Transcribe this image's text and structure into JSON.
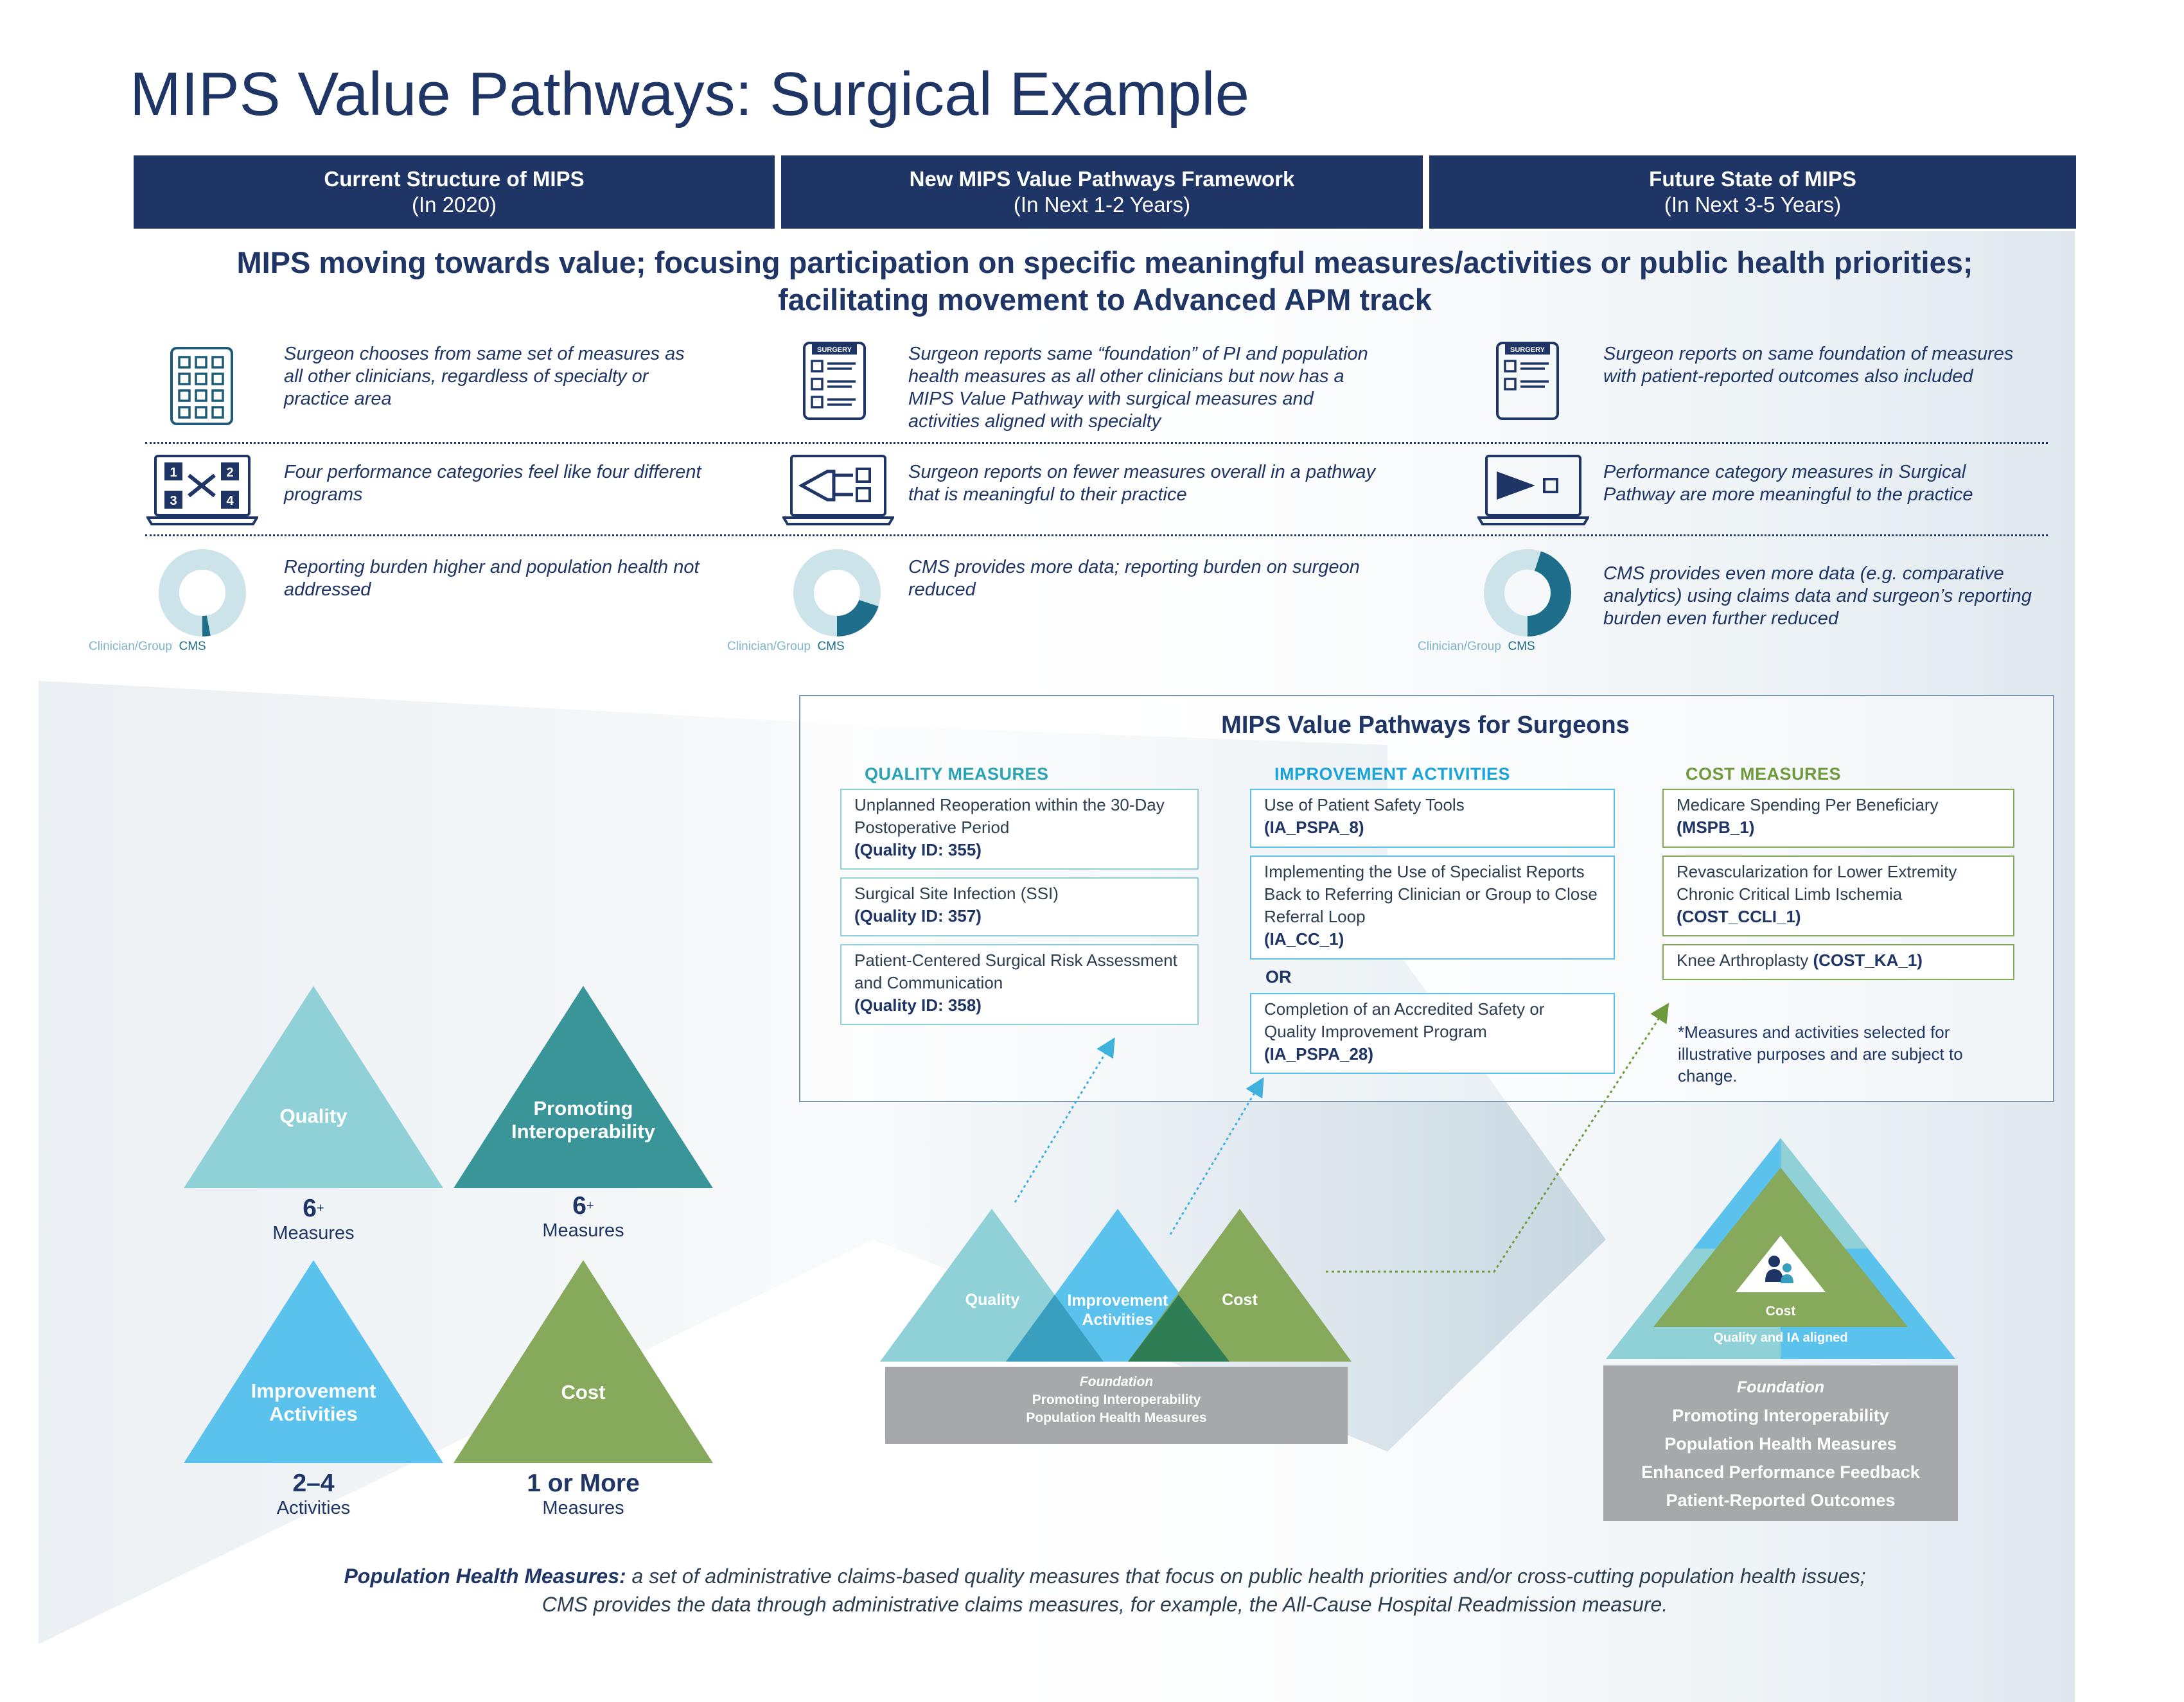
{
  "title": "MIPS Value Pathways: Surgical Example",
  "columns": [
    {
      "heading": "Current Structure of MIPS",
      "sub": "(In 2020)"
    },
    {
      "heading": "New MIPS Value Pathways Framework",
      "sub": "(In Next 1-2 Years)"
    },
    {
      "heading": "Future State of MIPS",
      "sub": "(In Next 3-5 Years)"
    }
  ],
  "subtitle": {
    "line1": "MIPS moving towards value; focusing participation on specific meaningful measures/activities or public health priorities;",
    "line2": "facilitating movement to Advanced APM track"
  },
  "rows": {
    "row1": [
      "Surgeon chooses from same set of measures as all other clinicians, regardless of specialty or practice area",
      "Surgeon reports same “foundation” of PI and population health measures as all other clinicians but now has a MIPS Value Pathway with surgical measures and activities aligned with specialty",
      "Surgeon reports on same foundation of measures with patient-reported outcomes also included"
    ],
    "row2": [
      "Four performance categories feel like four different programs",
      "Surgeon reports on fewer measures overall in a pathway that is meaningful to their practice",
      "Performance category measures in Surgical Pathway are more meaningful to the practice"
    ],
    "row3": [
      "Reporting burden higher and population health not addressed",
      "CMS provides more data; reporting burden on surgeon reduced",
      "CMS provides even more data (e.g. comparative analytics) using claims data and surgeon’s reporting burden even further reduced"
    ]
  },
  "donuts": {
    "label_left": "Clinician/Group",
    "label_right": "CMS",
    "cms_share": [
      0.03,
      0.2,
      0.45
    ]
  },
  "icons": {
    "surgery_tag": "SURGERY",
    "quad_numbers": [
      "1",
      "2",
      "3",
      "4"
    ]
  },
  "panel": {
    "title": "MIPS Value Pathways for Surgeons",
    "quality": {
      "heading": "QUALITY MEASURES",
      "items": [
        {
          "text": "Unplanned Reoperation within the 30-Day Postoperative Period",
          "id": "(Quality ID: 355)"
        },
        {
          "text": "Surgical Site Infection (SSI)",
          "id": "(Quality ID: 357)"
        },
        {
          "text": "Patient-Centered Surgical Risk Assessment and Communication",
          "id": "(Quality ID: 358)"
        }
      ]
    },
    "improvement": {
      "heading": "IMPROVEMENT ACTIVITIES",
      "items": [
        {
          "text": "Use of Patient Safety Tools",
          "id": "(IA_PSPA_8)"
        },
        {
          "text": "Implementing the Use of Specialist Reports Back to Referring Clinician or Group to Close Referral Loop",
          "id": "(IA_CC_1)"
        },
        {
          "text": "Completion of an Accredited Safety or Quality Improvement Program",
          "id": "(IA_PSPA_28)"
        }
      ],
      "or_label": "OR"
    },
    "cost": {
      "heading": "COST MEASURES",
      "items": [
        {
          "text": "Medicare Spending Per Beneficiary",
          "id": "(MSPB_1)"
        },
        {
          "text": "Revascularization for Lower Extremity Chronic Critical Limb Ischemia",
          "id": "(COST_CCLI_1)"
        },
        {
          "text": "Knee Arthroplasty",
          "id": "(COST_KA_1)"
        }
      ]
    },
    "note": "*Measures and activities selected for illustrative purposes and are subject to change."
  },
  "left_triangles": {
    "quality": {
      "label": "Quality",
      "count": "6",
      "sup": "+",
      "unit": "Measures"
    },
    "interop": {
      "label1": "Promoting",
      "label2": "Interoperability",
      "count": "6",
      "sup": "+",
      "unit": "Measures"
    },
    "ia": {
      "label1": "Improvement",
      "label2": "Activities",
      "count": "2–4",
      "unit": "Activities"
    },
    "cost": {
      "label": "Cost",
      "count": "1 or More",
      "unit": "Measures"
    }
  },
  "middle": {
    "quality": "Quality",
    "ia1": "Improvement",
    "ia2": "Activities",
    "cost": "Cost",
    "foundation": "Foundation",
    "f1": "Promoting Interoperability",
    "f2": "Population Health Measures"
  },
  "right": {
    "cost": "Cost",
    "aligned": "Quality and IA aligned",
    "foundation": "Foundation",
    "f1": "Promoting Interoperability",
    "f2": "Population Health Measures",
    "f3": "Enhanced Performance Feedback",
    "f4": "Patient-Reported Outcomes"
  },
  "footnote": {
    "bold": "Population Health Measures:",
    "rest": " a set of administrative claims-based quality measures that focus on public health priorities and/or cross-cutting population health issues;",
    "line2": "CMS provides the data through administrative claims measures, for example, the All-Cause Hospital Readmission measure."
  },
  "colors": {
    "navy": "#1e3566",
    "quality": "#8fd1d6",
    "interop": "#3a9599",
    "ia": "#5bc2ee",
    "cost": "#86a95c",
    "foundation": "#a6a8ab"
  }
}
